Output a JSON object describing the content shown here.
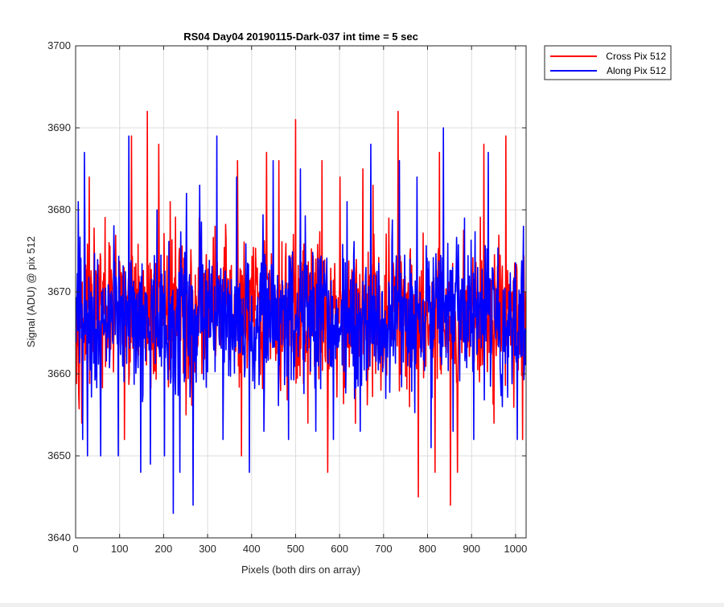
{
  "chart_data": {
    "type": "line",
    "title": "RS04 Day04 20190115-Dark-037 int time = 5 sec",
    "xlabel": "Pixels (both dirs on array)",
    "ylabel": "Signal (ADU) @ pix 512",
    "xlim": [
      0,
      1024
    ],
    "ylim": [
      3640,
      3700
    ],
    "xticks": [
      0,
      100,
      200,
      300,
      400,
      500,
      600,
      700,
      800,
      900,
      1000
    ],
    "yticks": [
      3640,
      3650,
      3660,
      3670,
      3680,
      3690,
      3700
    ],
    "grid": true,
    "legend_position": "outside-top-right",
    "series": [
      {
        "name": "Cross Pix 512",
        "color": "#ff0000",
        "mean": 3667.5,
        "points": [
          [
            0,
            3664
          ],
          [
            14,
            3654
          ],
          [
            31,
            3684
          ],
          [
            57,
            3674
          ],
          [
            76,
            3676
          ],
          [
            111,
            3652
          ],
          [
            127,
            3689
          ],
          [
            147,
            3667
          ],
          [
            163,
            3692
          ],
          [
            189,
            3688
          ],
          [
            215,
            3681
          ],
          [
            251,
            3655
          ],
          [
            281,
            3679
          ],
          [
            317,
            3678
          ],
          [
            368,
            3686
          ],
          [
            377,
            3650
          ],
          [
            434,
            3687
          ],
          [
            462,
            3686
          ],
          [
            495,
            3677
          ],
          [
            500,
            3691
          ],
          [
            528,
            3654
          ],
          [
            560,
            3686
          ],
          [
            573,
            3648
          ],
          [
            601,
            3684
          ],
          [
            653,
            3685
          ],
          [
            676,
            3683
          ],
          [
            694,
            3658
          ],
          [
            712,
            3679
          ],
          [
            733,
            3692
          ],
          [
            759,
            3656
          ],
          [
            779,
            3645
          ],
          [
            817,
            3648
          ],
          [
            827,
            3687
          ],
          [
            852,
            3644
          ],
          [
            868,
            3648
          ],
          [
            928,
            3688
          ],
          [
            951,
            3654
          ],
          [
            978,
            3689
          ],
          [
            1016,
            3652
          ]
        ]
      },
      {
        "name": "Along Pix 512",
        "color": "#0000ff",
        "mean": 3667.0,
        "points": [
          [
            6,
            3681
          ],
          [
            16,
            3652
          ],
          [
            20,
            3687
          ],
          [
            27,
            3650
          ],
          [
            57,
            3650
          ],
          [
            97,
            3650
          ],
          [
            121,
            3689
          ],
          [
            148,
            3648
          ],
          [
            170,
            3649
          ],
          [
            185,
            3680
          ],
          [
            202,
            3650
          ],
          [
            222,
            3643
          ],
          [
            237,
            3648
          ],
          [
            252,
            3682
          ],
          [
            267,
            3644
          ],
          [
            282,
            3683
          ],
          [
            321,
            3689
          ],
          [
            335,
            3652
          ],
          [
            366,
            3684
          ],
          [
            395,
            3648
          ],
          [
            428,
            3653
          ],
          [
            449,
            3686
          ],
          [
            484,
            3652
          ],
          [
            511,
            3685
          ],
          [
            546,
            3653
          ],
          [
            586,
            3652
          ],
          [
            617,
            3681
          ],
          [
            634,
            3657
          ],
          [
            647,
            3653
          ],
          [
            671,
            3688
          ],
          [
            705,
            3657
          ],
          [
            736,
            3686
          ],
          [
            776,
            3684
          ],
          [
            808,
            3651
          ],
          [
            836,
            3690
          ],
          [
            858,
            3653
          ],
          [
            884,
            3679
          ],
          [
            905,
            3652
          ],
          [
            938,
            3687
          ],
          [
            970,
            3656
          ],
          [
            1004,
            3652
          ],
          [
            1018,
            3678
          ]
        ]
      }
    ]
  }
}
